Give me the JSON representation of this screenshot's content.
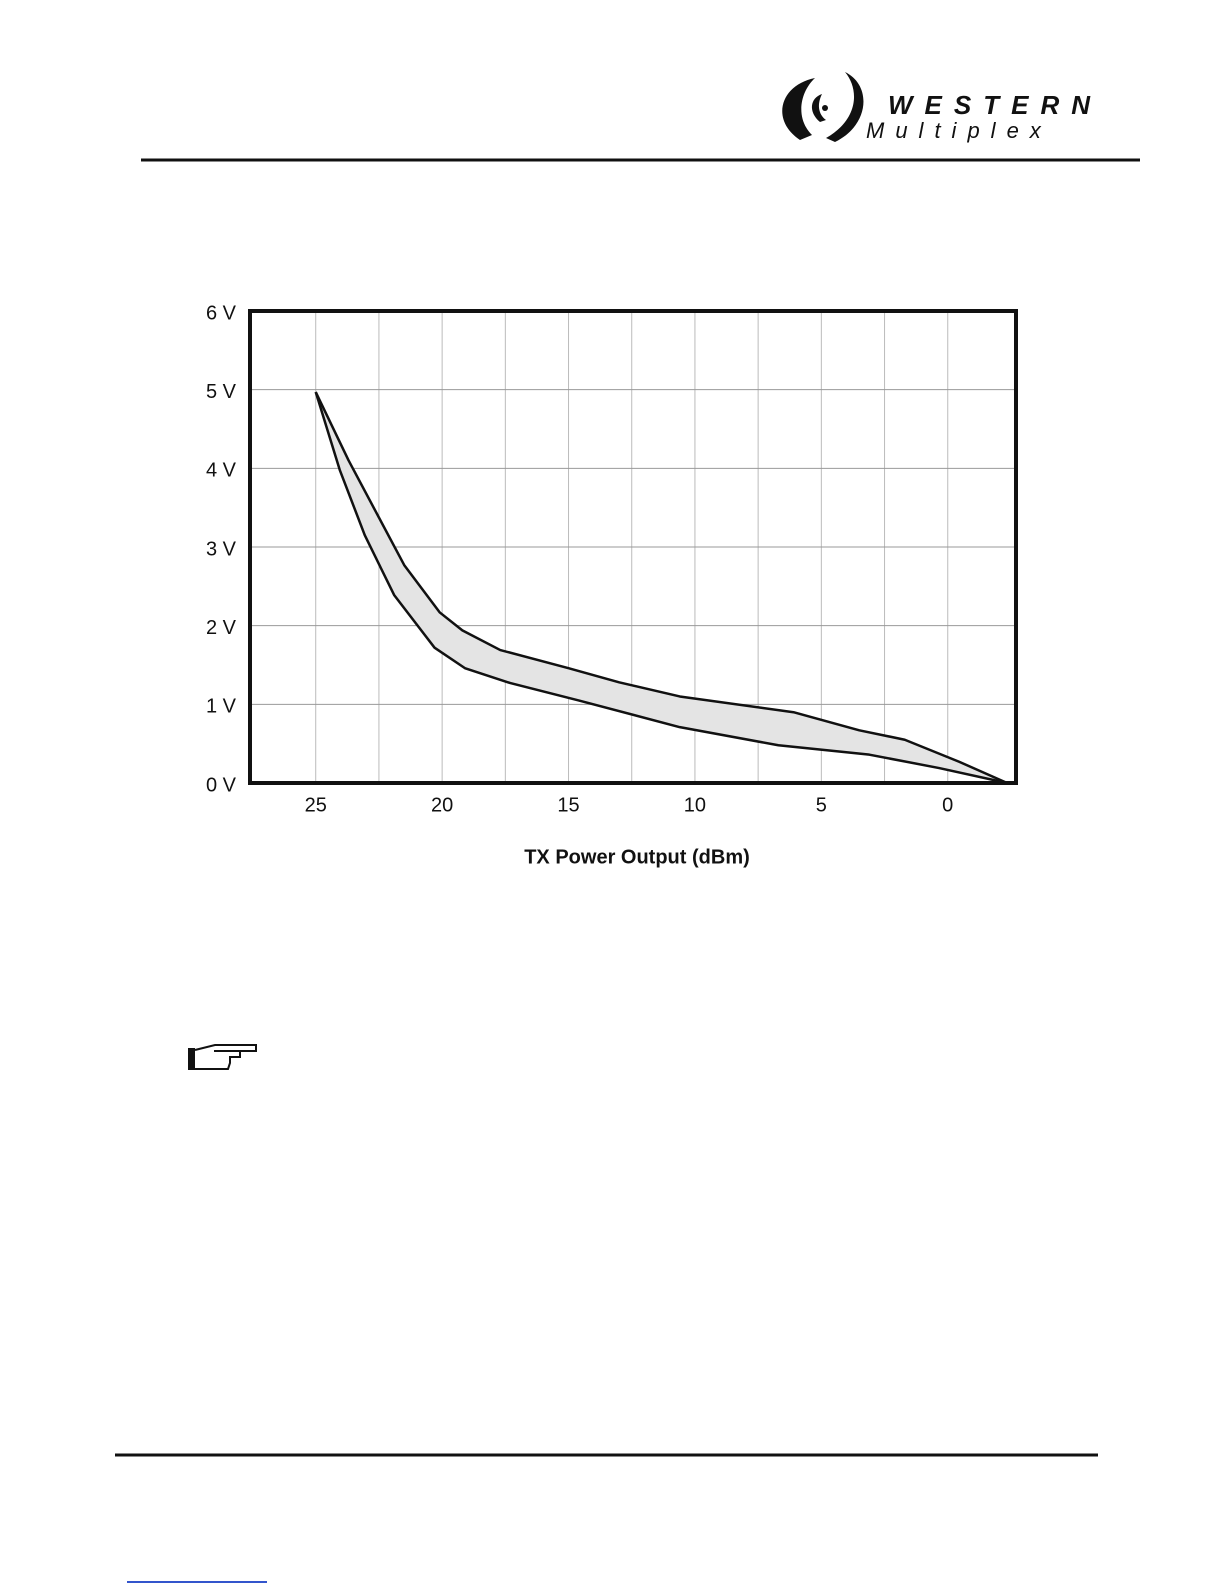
{
  "header": {
    "brand_top": "WESTERN",
    "brand_bottom": "Multiplex"
  },
  "chart_data": {
    "type": "line",
    "xlabel": "TX Power Output (dBm)",
    "xlim": [
      27.6,
      -2.7
    ],
    "xticks": [
      25,
      20,
      15,
      10,
      5,
      0
    ],
    "xgrid": [
      25,
      22.5,
      20,
      17.5,
      15,
      12.5,
      10,
      7.5,
      5,
      2.5,
      0
    ],
    "ylim": [
      0,
      6
    ],
    "yticks": [
      {
        "value": 0,
        "label": "0 V"
      },
      {
        "value": 1,
        "label": "1 V"
      },
      {
        "value": 2,
        "label": "2 V"
      },
      {
        "value": 3,
        "label": "3 V"
      },
      {
        "value": 4,
        "label": "4 V"
      },
      {
        "value": 5,
        "label": "5 V"
      },
      {
        "value": 6,
        "label": "6 V"
      }
    ],
    "grid": true,
    "fill_between": "#e4e4e4",
    "series": [
      {
        "color": "#111111",
        "x": [
          25,
          23.7,
          21.5,
          20.1,
          19.2,
          17.7,
          15,
          13,
          10.6,
          6.1,
          3.5,
          1.7,
          -0.45,
          -2.35
        ],
        "values": [
          4.97,
          4.1,
          2.77,
          2.17,
          1.94,
          1.69,
          1.46,
          1.28,
          1.1,
          0.9,
          0.67,
          0.55,
          0.27,
          0
        ]
      },
      {
        "color": "#111111",
        "x": [
          25,
          24.05,
          23.06,
          21.9,
          20.3,
          19.1,
          17.3,
          14.6,
          10.6,
          6.7,
          3.1,
          0.34,
          -2.35
        ],
        "values": [
          4.97,
          3.98,
          3.15,
          2.39,
          1.72,
          1.46,
          1.27,
          1.05,
          0.71,
          0.48,
          0.36,
          0.19,
          0
        ]
      }
    ]
  }
}
